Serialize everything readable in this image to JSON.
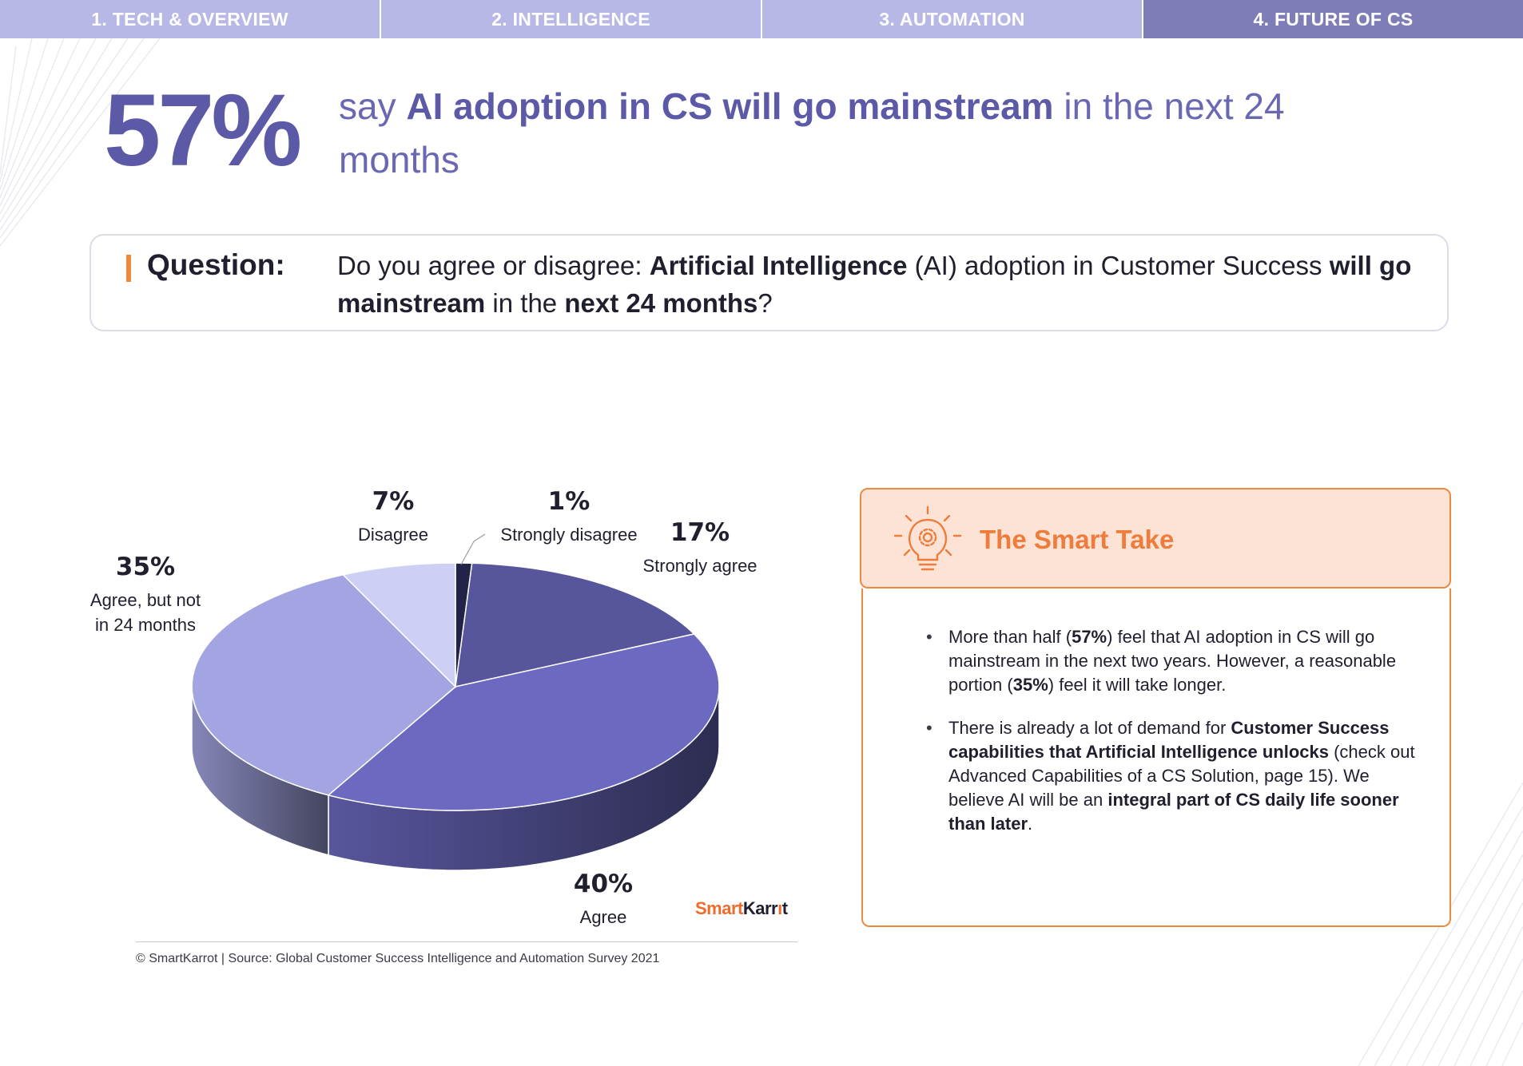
{
  "nav": {
    "tabs": [
      {
        "label": "1. TECH & OVERVIEW",
        "active": false
      },
      {
        "label": "2. INTELLIGENCE",
        "active": false
      },
      {
        "label": "3. AUTOMATION",
        "active": false
      },
      {
        "label": "4. FUTURE OF CS",
        "active": true
      }
    ]
  },
  "headline": {
    "stat": "57%",
    "prefix": "say ",
    "emphasis": "AI adoption in CS will go mainstream",
    "suffix": " in the next 24 months"
  },
  "question": {
    "label": "Question:",
    "t1": "Do you agree or disagree: ",
    "b1": "Artificial Intelligence",
    "t2": " (AI) adoption in Customer Success ",
    "b2": "will go mainstream",
    "t3": " in the ",
    "b3": "next 24 months",
    "t4": "?"
  },
  "chart_data": {
    "type": "pie",
    "style": "3d",
    "slices": [
      {
        "label": "Strongly disagree",
        "value": 1,
        "pct": "1%",
        "color": "#23234a"
      },
      {
        "label": "Strongly agree",
        "value": 17,
        "pct": "17%",
        "color": "#57559b"
      },
      {
        "label": "Agree",
        "value": 40,
        "pct": "40%",
        "color": "#6b69c0"
      },
      {
        "label": "Agree, but not in 24 months",
        "label_lines": [
          "Agree, but not",
          "in 24 months"
        ],
        "value": 35,
        "pct": "35%",
        "color": "#a3a5e2"
      },
      {
        "label": "Disagree",
        "value": 7,
        "pct": "7%",
        "color": "#cdd0f4"
      }
    ]
  },
  "brand": {
    "part1": "Smart",
    "part2": "Karr",
    "part3": "t"
  },
  "footer": "© SmartKarrot | Source: Global Customer Success Intelligence and Automation Survey 2021",
  "smart_take": {
    "icon": "lightbulb-gear-icon",
    "title": "The Smart Take",
    "b1": {
      "t1": "More than half (",
      "s1": "57%",
      "t2": ") feel that AI adoption in CS will go mainstream in the next two years. However, a reasonable portion (",
      "s2": "35%",
      "t3": ") feel it will take longer."
    },
    "b2": {
      "t1": "There is already a lot of demand for ",
      "s1": "Customer Success capabilities that Artificial Intelligence unlocks",
      "t2": " (check out Advanced Capabilities of a CS Solution, page 15). We believe AI will be an ",
      "s2": "integral part of CS daily life sooner than later",
      "t3": "."
    }
  },
  "colors": {
    "accent": "#5c59a7",
    "orange": "#ec8a3f",
    "nav": "#b7b8e6",
    "nav_active": "#7f7db8"
  }
}
